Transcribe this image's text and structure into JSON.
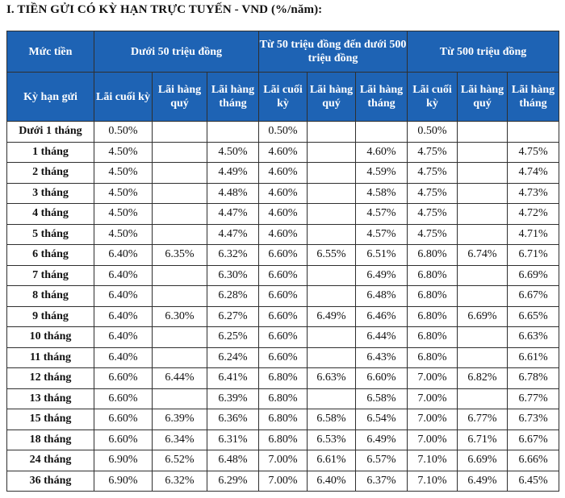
{
  "title": "I. TIỀN GỬI CÓ KỲ HẠN TRỰC TUYẾN - VND (%/năm):",
  "header": {
    "muc_tien": "Mức tiền",
    "ky_han": "Kỳ hạn gửi",
    "groups": [
      "Dưới 50 triệu đồng",
      "Từ 50 triệu đồng đến dưới 500 triệu đồng",
      "Từ 500 triệu đồng"
    ],
    "subcols": [
      "Lãi cuối kỳ",
      "Lãi hàng quý",
      "Lãi hàng tháng"
    ]
  },
  "rows": [
    {
      "term": "Dưới 1 tháng",
      "vals": [
        "0.50%",
        "",
        "",
        "0.50%",
        "",
        "",
        "0.50%",
        "",
        ""
      ]
    },
    {
      "term": "1 tháng",
      "vals": [
        "4.50%",
        "",
        "4.50%",
        "4.60%",
        "",
        "4.60%",
        "4.75%",
        "",
        "4.75%"
      ]
    },
    {
      "term": "2 tháng",
      "vals": [
        "4.50%",
        "",
        "4.49%",
        "4.60%",
        "",
        "4.59%",
        "4.75%",
        "",
        "4.74%"
      ]
    },
    {
      "term": "3 tháng",
      "vals": [
        "4.50%",
        "",
        "4.48%",
        "4.60%",
        "",
        "4.58%",
        "4.75%",
        "",
        "4.73%"
      ]
    },
    {
      "term": "4 tháng",
      "vals": [
        "4.50%",
        "",
        "4.47%",
        "4.60%",
        "",
        "4.57%",
        "4.75%",
        "",
        "4.72%"
      ]
    },
    {
      "term": "5 tháng",
      "vals": [
        "4.50%",
        "",
        "4.47%",
        "4.60%",
        "",
        "4.57%",
        "4.75%",
        "",
        "4.71%"
      ]
    },
    {
      "term": "6 tháng",
      "vals": [
        "6.40%",
        "6.35%",
        "6.32%",
        "6.60%",
        "6.55%",
        "6.51%",
        "6.80%",
        "6.74%",
        "6.71%"
      ]
    },
    {
      "term": "7 tháng",
      "vals": [
        "6.40%",
        "",
        "6.30%",
        "6.60%",
        "",
        "6.49%",
        "6.80%",
        "",
        "6.69%"
      ]
    },
    {
      "term": "8 tháng",
      "vals": [
        "6.40%",
        "",
        "6.28%",
        "6.60%",
        "",
        "6.48%",
        "6.80%",
        "",
        "6.67%"
      ]
    },
    {
      "term": "9 tháng",
      "vals": [
        "6.40%",
        "6.30%",
        "6.27%",
        "6.60%",
        "6.49%",
        "6.46%",
        "6.80%",
        "6.69%",
        "6.65%"
      ]
    },
    {
      "term": "10 tháng",
      "vals": [
        "6.40%",
        "",
        "6.25%",
        "6.60%",
        "",
        "6.44%",
        "6.80%",
        "",
        "6.63%"
      ]
    },
    {
      "term": "11 tháng",
      "vals": [
        "6.40%",
        "",
        "6.24%",
        "6.60%",
        "",
        "6.43%",
        "6.80%",
        "",
        "6.61%"
      ]
    },
    {
      "term": "12 tháng",
      "vals": [
        "6.60%",
        "6.44%",
        "6.41%",
        "6.80%",
        "6.63%",
        "6.60%",
        "7.00%",
        "6.82%",
        "6.78%"
      ]
    },
    {
      "term": "13 tháng",
      "vals": [
        "6.60%",
        "",
        "6.39%",
        "6.80%",
        "",
        "6.58%",
        "7.00%",
        "",
        "6.77%"
      ]
    },
    {
      "term": "15 tháng",
      "vals": [
        "6.60%",
        "6.39%",
        "6.36%",
        "6.80%",
        "6.58%",
        "6.54%",
        "7.00%",
        "6.77%",
        "6.73%"
      ]
    },
    {
      "term": "18 tháng",
      "vals": [
        "6.60%",
        "6.34%",
        "6.31%",
        "6.80%",
        "6.53%",
        "6.49%",
        "7.00%",
        "6.71%",
        "6.67%"
      ]
    },
    {
      "term": "24 tháng",
      "vals": [
        "6.90%",
        "6.52%",
        "6.48%",
        "7.00%",
        "6.61%",
        "6.57%",
        "7.10%",
        "6.69%",
        "6.66%"
      ]
    },
    {
      "term": "36 tháng",
      "vals": [
        "6.90%",
        "6.32%",
        "6.29%",
        "7.00%",
        "6.40%",
        "6.37%",
        "7.10%",
        "6.49%",
        "6.45%"
      ]
    }
  ]
}
